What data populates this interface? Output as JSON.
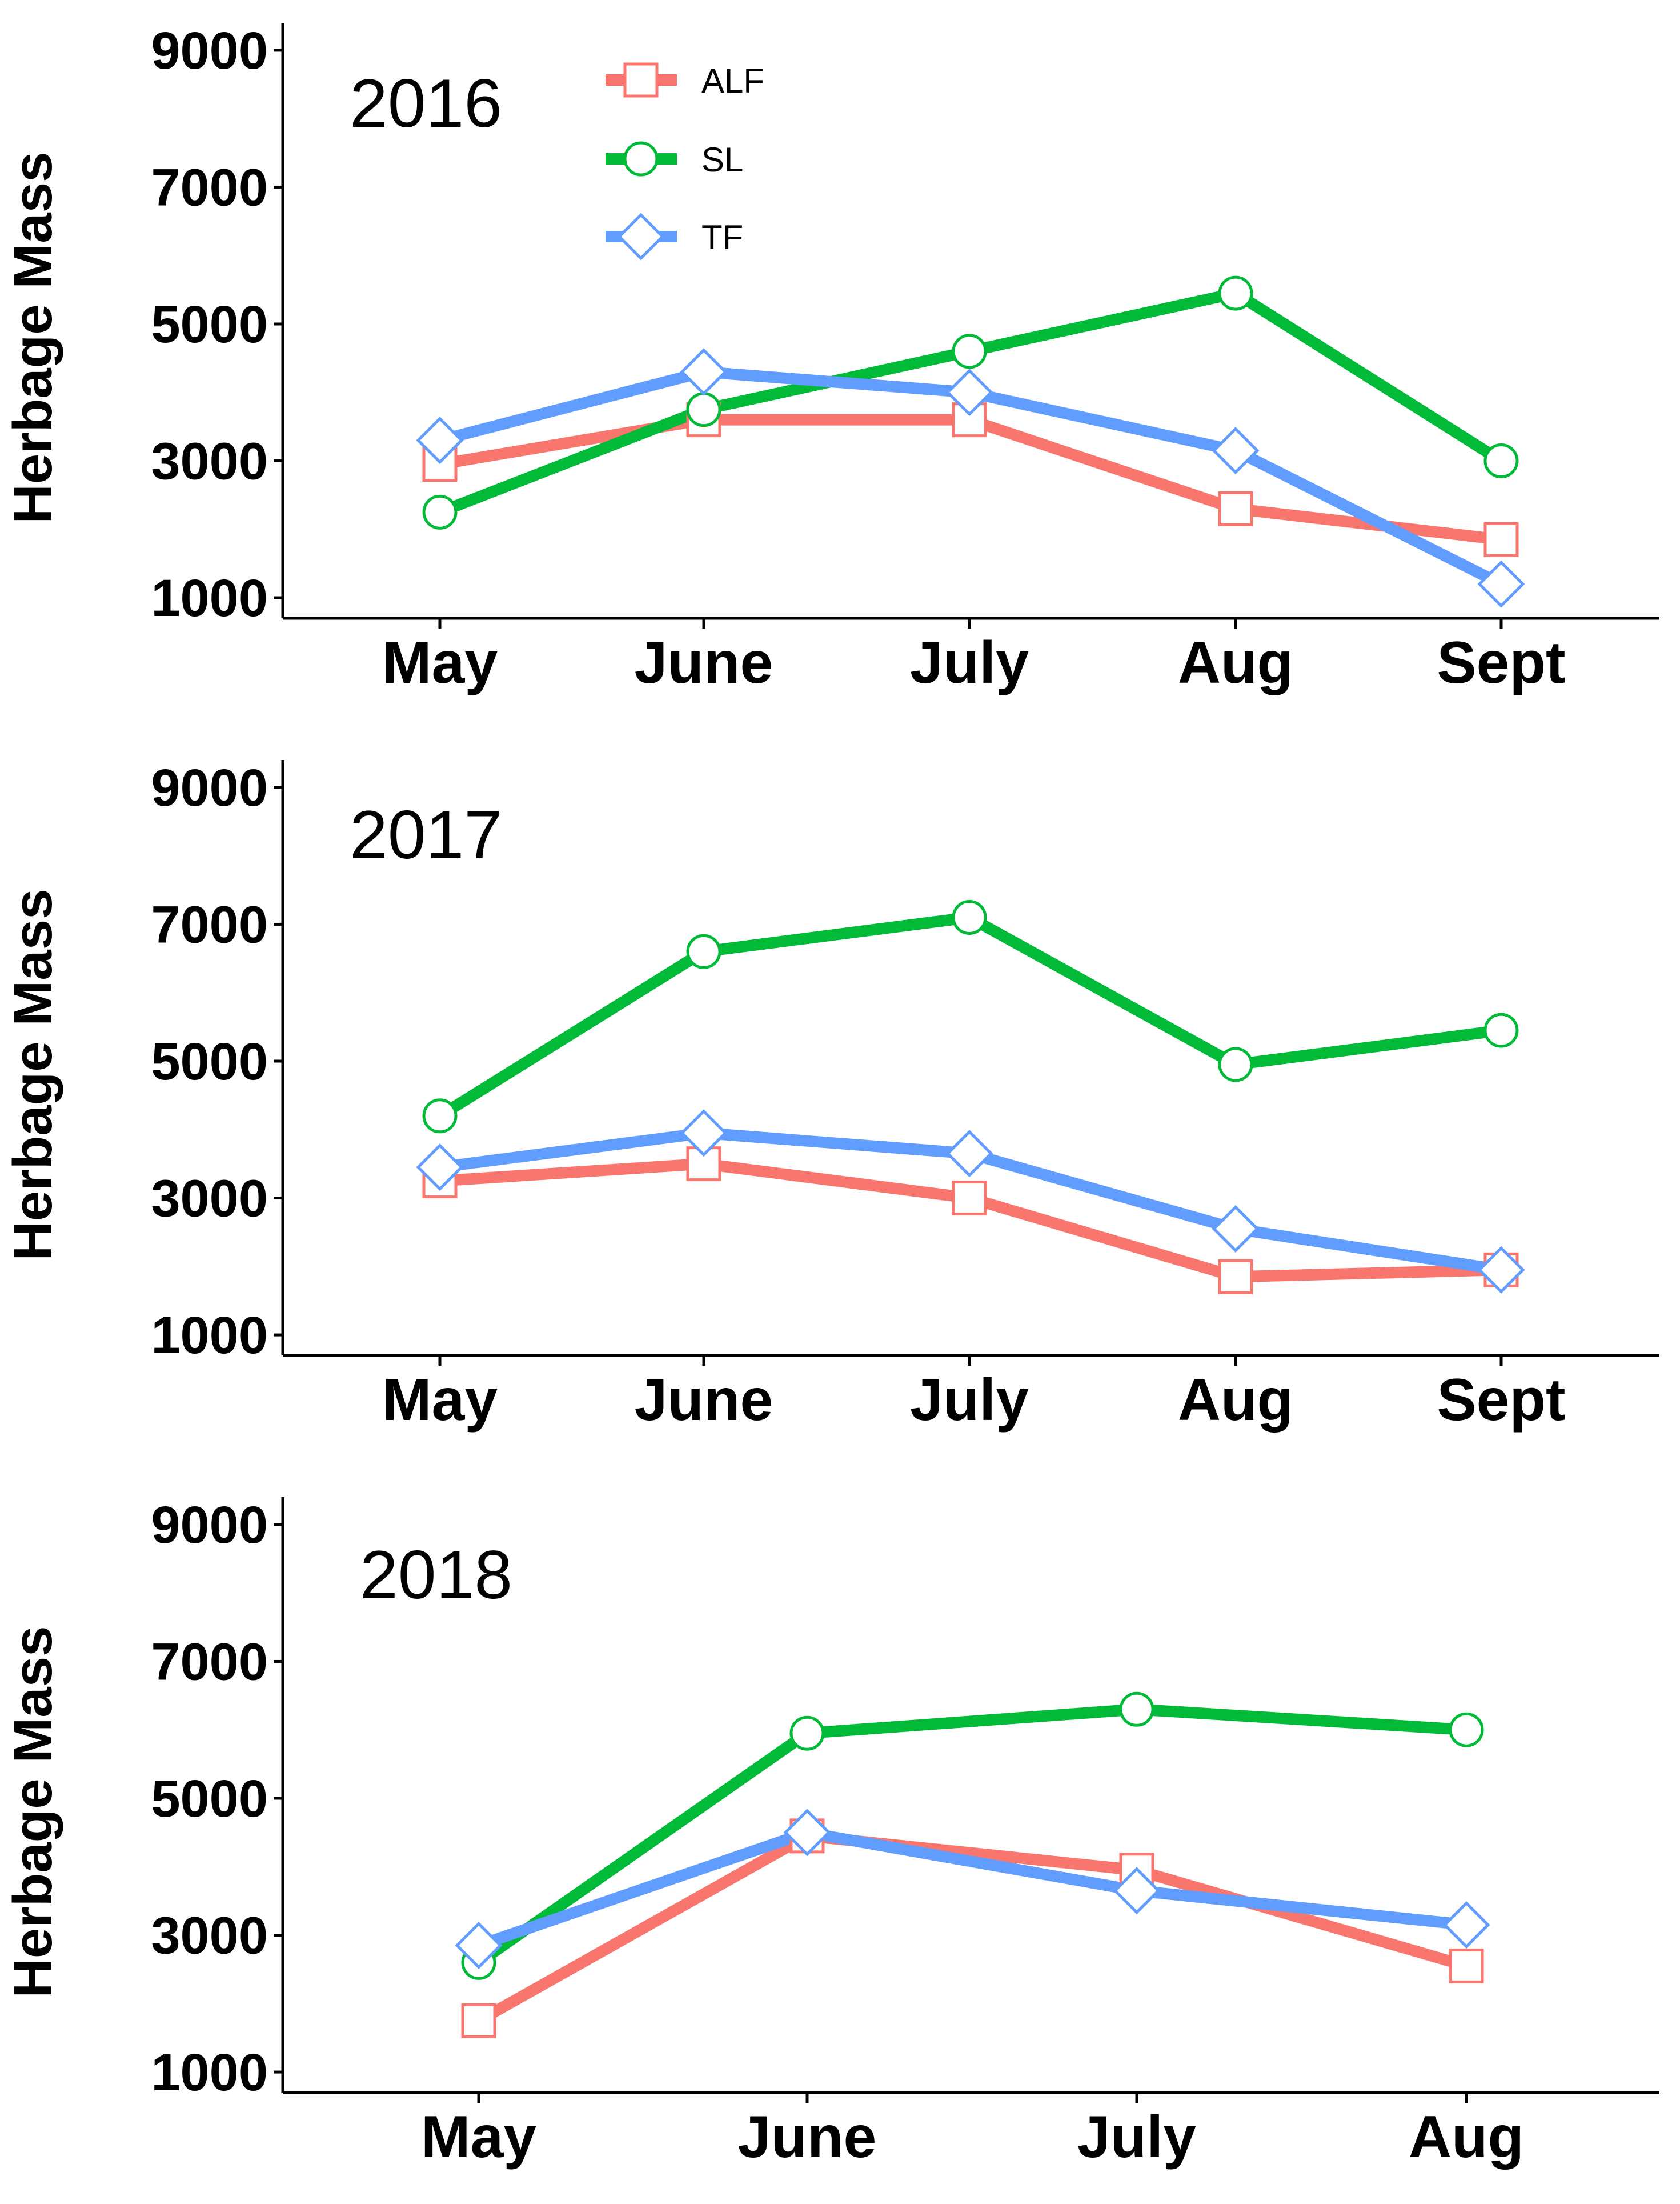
{
  "chart_data": [
    {
      "type": "line",
      "panel_label": "2016",
      "ylabel": "Herbage Mass",
      "xlabel": "",
      "categories": [
        "May",
        "June",
        "July",
        "Aug",
        "Sept"
      ],
      "ylim": [
        700,
        9400
      ],
      "yticks": [
        1000,
        3000,
        5000,
        7000,
        9000
      ],
      "yticklabels": [
        "1000",
        "3000",
        "5000",
        "7000",
        "9000"
      ],
      "grid": false,
      "legend": "top-left",
      "series": [
        {
          "name": "ALF",
          "color": "#F8766D",
          "marker": "square",
          "values": [
            2950,
            3600,
            3600,
            2300,
            1850
          ]
        },
        {
          "name": "SL",
          "color": "#00BA38",
          "marker": "circle",
          "values": [
            2250,
            3750,
            4600,
            5450,
            3000
          ]
        },
        {
          "name": "TF",
          "color": "#619CFF",
          "marker": "diamond",
          "values": [
            3300,
            4300,
            4000,
            3150,
            1200
          ]
        }
      ]
    },
    {
      "type": "line",
      "panel_label": "2017",
      "ylabel": "Herbage Mass",
      "xlabel": "",
      "categories": [
        "May",
        "June",
        "July",
        "Aug",
        "Sept"
      ],
      "ylim": [
        700,
        9400
      ],
      "yticks": [
        1000,
        3000,
        5000,
        7000,
        9000
      ],
      "yticklabels": [
        "1000",
        "3000",
        "5000",
        "7000",
        "9000"
      ],
      "grid": false,
      "series": [
        {
          "name": "ALF",
          "color": "#F8766D",
          "marker": "square",
          "values": [
            3250,
            3500,
            3000,
            1850,
            1950
          ]
        },
        {
          "name": "SL",
          "color": "#00BA38",
          "marker": "circle",
          "values": [
            4200,
            6600,
            7100,
            4950,
            5450
          ]
        },
        {
          "name": "TF",
          "color": "#619CFF",
          "marker": "diamond",
          "values": [
            3450,
            3950,
            3650,
            2550,
            1950
          ]
        }
      ]
    },
    {
      "type": "line",
      "panel_label": "2018",
      "ylabel": "Herbage Mass",
      "xlabel": "",
      "categories": [
        "May",
        "June",
        "July",
        "Aug"
      ],
      "ylim": [
        700,
        9400
      ],
      "yticks": [
        1000,
        3000,
        5000,
        7000,
        9000
      ],
      "yticklabels": [
        "1000",
        "3000",
        "5000",
        "7000",
        "9000"
      ],
      "grid": false,
      "series": [
        {
          "name": "ALF",
          "color": "#F8766D",
          "marker": "square",
          "values": [
            1750,
            4450,
            3950,
            2550
          ]
        },
        {
          "name": "SL",
          "color": "#00BA38",
          "marker": "circle",
          "values": [
            2600,
            5950,
            6300,
            6000
          ]
        },
        {
          "name": "TF",
          "color": "#619CFF",
          "marker": "diamond",
          "values": [
            2850,
            4500,
            3650,
            3150
          ]
        }
      ]
    }
  ]
}
